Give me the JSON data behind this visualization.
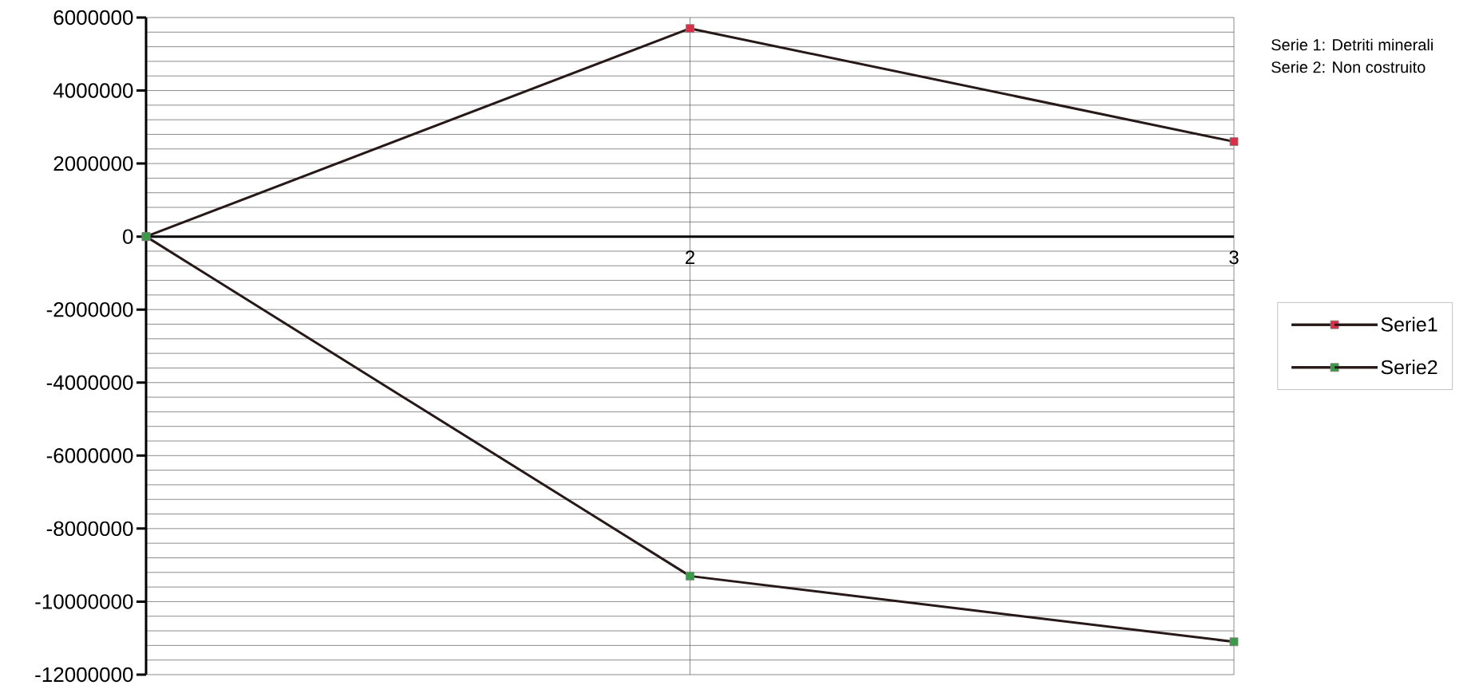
{
  "chart_data": {
    "type": "line",
    "categories": [
      null,
      "2",
      "3"
    ],
    "series": [
      {
        "name": "Serie1",
        "color": "#d9304a",
        "values": [
          0,
          5700000,
          2600000
        ]
      },
      {
        "name": "Serie2",
        "color": "#3a9a48",
        "values": [
          0,
          -9300000,
          -11100000
        ]
      }
    ],
    "ylim": [
      -12000000,
      6000000
    ],
    "yticks": [
      -12000000,
      -10000000,
      -8000000,
      -6000000,
      -4000000,
      -2000000,
      0,
      2000000,
      4000000,
      6000000
    ],
    "grid": true,
    "legend": "right",
    "marker": "square",
    "line_style": "solid",
    "annotations": [
      "Serie 1: Detriti minerali",
      "Serie 2: Non costruito"
    ]
  }
}
